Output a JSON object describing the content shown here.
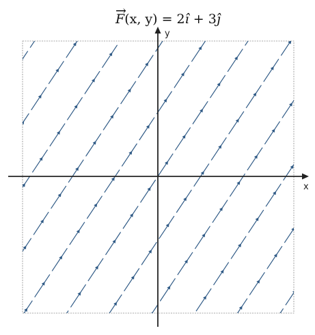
{
  "figure": {
    "title_parts": {
      "field_name": "F",
      "vector_arrow": "→",
      "args": "(x, y) = 2",
      "i_hat": "î",
      "plus": " + 3",
      "j_hat": "ĵ"
    },
    "x_axis_label": "x",
    "y_axis_label": "y"
  },
  "colors": {
    "field_line": "#2f5a86",
    "axis": "#222222",
    "frame": "#8a8a8a"
  },
  "field": {
    "fx": 2,
    "fy": 3,
    "domain": {
      "x": [
        -3,
        3
      ],
      "y": [
        -3,
        3
      ]
    }
  }
}
